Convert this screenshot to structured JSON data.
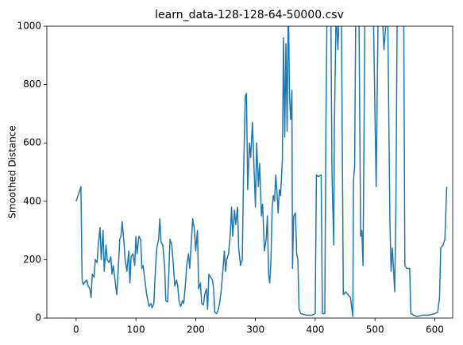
{
  "chart_data": {
    "type": "line",
    "title": "learn_data-128-128-64-50000.csv",
    "ylabel": "Smoothed Distance",
    "xlim": [
      -49,
      630
    ],
    "ylim": [
      0,
      1000
    ],
    "xticks": [
      0,
      100,
      200,
      300,
      400,
      500,
      600
    ],
    "yticks": [
      0,
      200,
      400,
      600,
      800,
      1000
    ],
    "grid": false,
    "series": [
      {
        "name": "Smoothed Distance",
        "color": "#1f77b4",
        "x": [
          0,
          5,
          8,
          10,
          12,
          15,
          18,
          20,
          23,
          25,
          27,
          30,
          32,
          35,
          37,
          40,
          42,
          45,
          47,
          50,
          52,
          55,
          58,
          60,
          62,
          65,
          68,
          70,
          73,
          75,
          77,
          80,
          82,
          85,
          88,
          90,
          92,
          95,
          98,
          100,
          102,
          105,
          108,
          110,
          112,
          115,
          118,
          120,
          122,
          125,
          127,
          130,
          133,
          135,
          138,
          140,
          142,
          145,
          148,
          150,
          153,
          155,
          157,
          160,
          162,
          165,
          168,
          170,
          172,
          175,
          178,
          180,
          183,
          185,
          188,
          190,
          193,
          195,
          198,
          200,
          203,
          205,
          208,
          210,
          213,
          215,
          218,
          220,
          222,
          225,
          228,
          230,
          232,
          235,
          238,
          240,
          243,
          245,
          248,
          250,
          252,
          255,
          258,
          260,
          262,
          265,
          267,
          270,
          272,
          275,
          278,
          280,
          283,
          285,
          287,
          290,
          292,
          295,
          297,
          300,
          302,
          305,
          307,
          310,
          312,
          315,
          318,
          320,
          322,
          324,
          326,
          328,
          330,
          332,
          334,
          336,
          338,
          340,
          342,
          345,
          347,
          349,
          351,
          353,
          355,
          357,
          359,
          361,
          362,
          364,
          367,
          369,
          371,
          373,
          376,
          385,
          395,
          400,
          402,
          405,
          410,
          412,
          416,
          418,
          420,
          426,
          428,
          431,
          432,
          435,
          438,
          441,
          444,
          447,
          451,
          455,
          459,
          463,
          464,
          466,
          468,
          473,
          476,
          478,
          480,
          483,
          487,
          497,
          500,
          502,
          505,
          508,
          512,
          515,
          518,
          521,
          525,
          527,
          529,
          531,
          533,
          535,
          537,
          540,
          545,
          548,
          550,
          553,
          558,
          560,
          570,
          580,
          590,
          600,
          605,
          608,
          610,
          614,
          617,
          620
        ],
        "values": [
          400,
          430,
          450,
          130,
          115,
          125,
          130,
          110,
          100,
          70,
          150,
          140,
          200,
          190,
          250,
          310,
          200,
          300,
          160,
          250,
          200,
          190,
          210,
          150,
          180,
          130,
          80,
          150,
          270,
          280,
          330,
          260,
          200,
          160,
          230,
          120,
          210,
          220,
          180,
          280,
          220,
          280,
          270,
          170,
          180,
          130,
          80,
          60,
          40,
          50,
          35,
          50,
          180,
          240,
          270,
          340,
          260,
          250,
          180,
          60,
          55,
          150,
          270,
          250,
          200,
          110,
          130,
          110,
          60,
          40,
          60,
          50,
          120,
          180,
          220,
          170,
          270,
          340,
          300,
          230,
          300,
          100,
          120,
          50,
          45,
          80,
          100,
          30,
          150,
          140,
          130,
          100,
          20,
          15,
          30,
          50,
          100,
          150,
          230,
          160,
          200,
          220,
          290,
          380,
          280,
          370,
          320,
          380,
          240,
          180,
          200,
          480,
          760,
          770,
          440,
          600,
          550,
          670,
          550,
          380,
          600,
          450,
          530,
          350,
          390,
          230,
          270,
          350,
          150,
          120,
          200,
          380,
          420,
          400,
          490,
          430,
          360,
          440,
          420,
          540,
          960,
          620,
          940,
          640,
          1100,
          760,
          680,
          780,
          170,
          350,
          360,
          220,
          200,
          30,
          15,
          10,
          10,
          15,
          490,
          485,
          490,
          15,
          15,
          680,
          1100,
          1100,
          500,
          250,
          650,
          1050,
          920,
          1100,
          1000,
          80,
          90,
          80,
          70,
          5,
          470,
          520,
          1100,
          1100,
          280,
          300,
          180,
          1000,
          1100,
          1100,
          700,
          450,
          1000,
          1100,
          1050,
          920,
          1000,
          1100,
          330,
          160,
          240,
          170,
          90,
          380,
          1000,
          1100,
          1050,
          1100,
          180,
          170,
          170,
          15,
          5,
          10,
          10,
          15,
          20,
          70,
          240,
          250,
          270,
          450
        ]
      }
    ]
  }
}
